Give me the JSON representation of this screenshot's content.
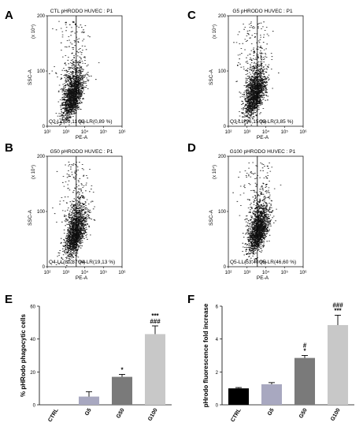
{
  "panels": [
    {
      "letter": "A",
      "title": "CTL pHRODO HUVEC : P1",
      "quad_ll": "Q2-LL(99,11 %)",
      "quad_lr": "Q2-LR(0,89 %)",
      "seed": 11,
      "cx": 7.6,
      "spread": 0.42,
      "split": 0.92
    },
    {
      "letter": "C",
      "title": "G5 pHRODO HUVEC : P1",
      "quad_ll": "Q3-LL(96,15 %)",
      "quad_lr": "Q3-LR(3,85 %)",
      "seed": 23,
      "cx": 7.7,
      "spread": 0.45,
      "split": 0.86
    },
    {
      "letter": "B",
      "title": "G50 pHRODO HUVEC : P1",
      "quad_ll": "Q4-LL(80,87 %)",
      "quad_lr": "Q4-LR(19,13 %)",
      "seed": 37,
      "cx": 7.85,
      "spread": 0.5,
      "split": 0.74
    },
    {
      "letter": "D",
      "title": "G100 pHRODO HUVEC : P1",
      "quad_ll": "Q5-LL(53,40 %)",
      "quad_lr": "Q5-LR(46,60 %)",
      "seed": 53,
      "cx": 8.0,
      "spread": 0.55,
      "split": 0.56
    }
  ],
  "scatter_axes": {
    "xlabel": "PE-A",
    "ylabel": "SSC-A",
    "xticks": [
      "10²",
      "10³",
      "10⁴",
      "10⁵",
      "10⁶"
    ],
    "y_exponent": "(x 10⁴)"
  },
  "chart_data": [
    {
      "type": "bar",
      "letter": "E",
      "ylabel": "% pHRodo phagocytic cells",
      "categories": [
        "CTRL",
        "G5",
        "G50",
        "G100"
      ],
      "values": [
        0,
        5,
        17,
        43
      ],
      "errors": [
        0,
        3,
        1.5,
        5
      ],
      "annotations": [
        "",
        "",
        "*",
        "***\n###"
      ],
      "ylim": [
        0,
        60
      ],
      "colors": [
        "#000000",
        "#a8a8c0",
        "#7a7a7a",
        "#c8c8c8"
      ]
    },
    {
      "type": "bar",
      "letter": "F",
      "ylabel": "pHrodo fluorescence fold increase",
      "categories": [
        "CTRL",
        "G5",
        "G50",
        "G100"
      ],
      "values": [
        1.0,
        1.25,
        2.85,
        4.85
      ],
      "errors": [
        0.05,
        0.1,
        0.15,
        0.6
      ],
      "annotations": [
        "",
        "",
        "#\n*",
        "###\n***"
      ],
      "ylim": [
        0,
        6
      ],
      "colors": [
        "#000000",
        "#a8a8c0",
        "#7a7a7a",
        "#c8c8c8"
      ]
    }
  ]
}
